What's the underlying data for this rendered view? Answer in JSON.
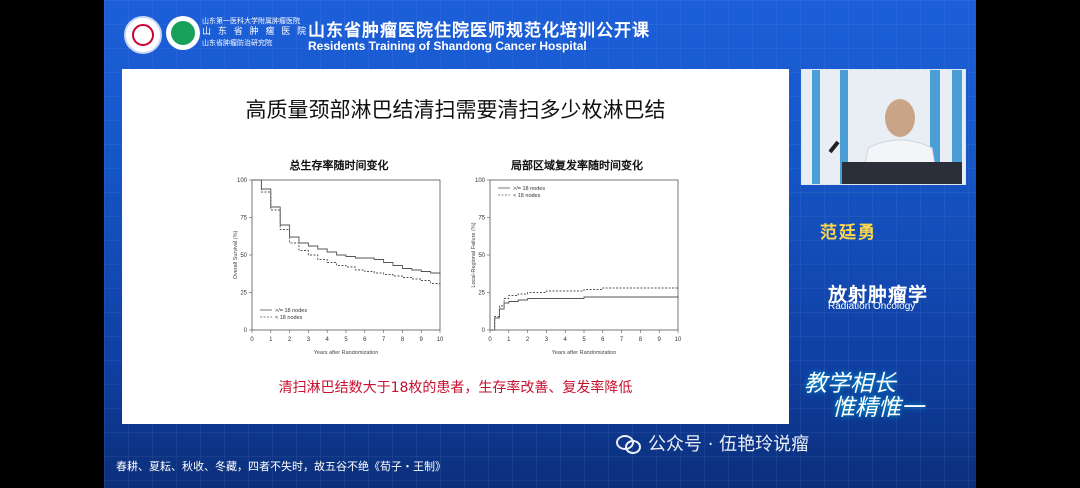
{
  "header": {
    "hospital_lines": [
      "山东第一医科大学附属肿瘤医院",
      "山 东 省 肿 瘤 医 院",
      "山东省肿瘤防治研究院"
    ],
    "course_title_cn": "山东省肿瘤医院住院医师规范化培训公开课",
    "course_title_en": "Residents Training of Shandong Cancer Hospital"
  },
  "slide": {
    "title": "高质量颈部淋巴结清扫需要清扫多少枚淋巴结",
    "caption": "清扫淋巴结数大于18枚的患者，生存率改善、复发率降低"
  },
  "chart_data": [
    {
      "type": "line",
      "title": "总生存率随时间变化",
      "xlabel": "Years after Randomization",
      "ylabel": "Overall Survival (%)",
      "xlim": [
        0,
        10
      ],
      "ylim": [
        0,
        100
      ],
      "xticks": [
        0,
        1,
        2,
        3,
        4,
        5,
        6,
        7,
        8,
        9,
        10
      ],
      "yticks": [
        0,
        25,
        50,
        75,
        100
      ],
      "legend_position": "bottom-left",
      "series": [
        {
          "name": ">/= 18 nodes",
          "style": "solid",
          "x": [
            0,
            0.5,
            1,
            1.5,
            2,
            2.5,
            3,
            3.5,
            4,
            4.5,
            5,
            5.5,
            6,
            6.5,
            7,
            7.5,
            8,
            8.5,
            9,
            9.5,
            10
          ],
          "y": [
            100,
            94,
            82,
            70,
            62,
            58,
            56,
            54,
            52,
            50,
            49,
            48,
            48,
            47,
            45,
            43,
            41,
            40,
            39,
            38,
            37
          ]
        },
        {
          "name": "< 18 nodes",
          "style": "dashed",
          "x": [
            0,
            0.5,
            1,
            1.5,
            2,
            2.5,
            3,
            3.5,
            4,
            4.5,
            5,
            5.5,
            6,
            6.5,
            7,
            7.5,
            8,
            8.5,
            9,
            9.5,
            10
          ],
          "y": [
            100,
            92,
            80,
            67,
            58,
            53,
            50,
            47,
            45,
            43,
            42,
            40,
            39,
            38,
            37,
            36,
            35,
            34,
            33,
            31,
            30
          ]
        }
      ]
    },
    {
      "type": "line",
      "title": "局部区域复发率随时间变化",
      "xlabel": "Years after Randomization",
      "ylabel": "Local-Regional Failure (%)",
      "xlim": [
        0,
        10
      ],
      "ylim": [
        0,
        100
      ],
      "xticks": [
        0,
        1,
        2,
        3,
        4,
        5,
        6,
        7,
        8,
        9,
        10
      ],
      "yticks": [
        0,
        25,
        50,
        75,
        100
      ],
      "legend_position": "top-left",
      "series": [
        {
          "name": ">/= 18 nodes",
          "style": "solid",
          "x": [
            0,
            0.25,
            0.5,
            0.75,
            1,
            1.5,
            2,
            3,
            4,
            5,
            6,
            7,
            8,
            9,
            10
          ],
          "y": [
            0,
            8,
            14,
            18,
            19,
            20,
            21,
            21,
            21,
            22,
            22,
            22,
            22,
            22,
            23
          ]
        },
        {
          "name": "< 18 nodes",
          "style": "dashed",
          "x": [
            0,
            0.25,
            0.5,
            0.75,
            1,
            1.5,
            2,
            3,
            4,
            5,
            6,
            7,
            8,
            9,
            10
          ],
          "y": [
            0,
            9,
            16,
            21,
            23,
            24,
            25,
            26,
            26,
            27,
            28,
            28,
            28,
            28,
            28
          ]
        }
      ]
    }
  ],
  "speaker": {
    "name": "范廷勇",
    "dept_cn": "放射肿瘤学",
    "dept_en": "Radiation Oncology"
  },
  "slogan": {
    "line1": "教学相长",
    "line2": "惟精惟一"
  },
  "watermark": "公众号 · 伍艳玲说瘤",
  "footer_quote": "春耕、夏耘、秋收、冬藏，四者不失时，故五谷不绝《荀子・王制》"
}
